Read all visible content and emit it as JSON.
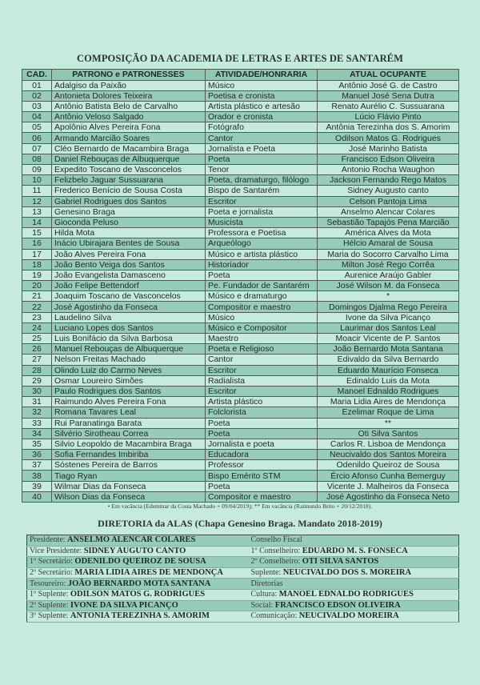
{
  "title": "COMPOSIÇÃO DA ACADEMIA DE LETRAS E ARTES DE SANTARÉM",
  "table": {
    "headers": [
      "CAD.",
      "PATRONO e PATRONESSES",
      "ATIVIDADE/HONRARIA",
      "ATUAL OCUPANTE"
    ],
    "rows": [
      [
        "01",
        "Adalgiso da Paixão",
        "Músico",
        "Antônio José G. de Castro"
      ],
      [
        "02",
        "Antonieta Dolores Teixeira",
        "Poetisa e cronista",
        "Manuel José Sena Dutra"
      ],
      [
        "03",
        "Antônio Batista Belo de Carvalho",
        "Artista plástico e artesão",
        "Renato Aurélio C. Sussuarana"
      ],
      [
        "04",
        "Antônio Veloso Salgado",
        "Orador e cronista",
        "Lúcio Flávio Pinto"
      ],
      [
        "05",
        "Apolônio Alves Pereira Fona",
        "Fotógrafo",
        "Antônia Terezinha dos S. Amorim"
      ],
      [
        "06",
        "Armando Marcião Soares",
        "Cantor",
        "Odilson Matos G. Rodrigues"
      ],
      [
        "07",
        "Cléo Bernardo de Macambira Braga",
        "Jornalista e Poeta",
        "José Marinho Batista"
      ],
      [
        "08",
        "Daniel Rebouças de Albuquerque",
        "Poeta",
        "Francisco Edson Oliveira"
      ],
      [
        "09",
        "Expedito Toscano de Vasconcelos",
        "Tenor",
        "Antonio Rocha Waughon"
      ],
      [
        "10",
        "Felizbelo Jaguar Sussuarana",
        "Poeta, dramaturgo, filólogo",
        "Jackson Fernando Rego Matos"
      ],
      [
        "11",
        "Frederico Benício de Sousa Costa",
        "Bispo de Santarém",
        "Sidney Augusto canto"
      ],
      [
        "12",
        "Gabriel Rodrigues dos Santos",
        "Escritor",
        "Celson Pantoja Lima"
      ],
      [
        "13",
        "Genesino Braga",
        "Poeta e jornalista",
        "Anselmo Alencar Colares"
      ],
      [
        "14",
        "Gioconda Peluso",
        "Musicista",
        "Sebastião Tapajós Pena Marcião"
      ],
      [
        "15",
        "Hilda Mota",
        "Professora e Poetisa",
        "América Alves da Mota"
      ],
      [
        "16",
        "Inácio Ubirajara Bentes de Sousa",
        "Arqueólogo",
        "Hélcio Amaral de Sousa"
      ],
      [
        "17",
        "João Alves Pereira Fona",
        "Músico e artista plástico",
        "Maria do Socorro Carvalho Lima"
      ],
      [
        "18",
        "João Bento Veiga dos Santos",
        "Historiador",
        "Milton José Rego Corrêa"
      ],
      [
        "19",
        "João Evangelista Damasceno",
        "Poeta",
        "Aurenice Araújo Gabler"
      ],
      [
        "20",
        "João Felipe Bettendorf",
        "Pe. Fundador de Santarém",
        "José Wilson M. da Fonseca"
      ],
      [
        "21",
        "Joaquim Toscano de Vasconcelos",
        "Músico e dramaturgo",
        "*"
      ],
      [
        "22",
        "José Agostinho da Fonseca",
        "Compositor e maestro",
        "Domingos Djalma Rego Pereira"
      ],
      [
        "23",
        "Laudelino Silva",
        "Músico",
        "Ivone da Silva Picanço"
      ],
      [
        "24",
        "Luciano Lopes dos Santos",
        "Músico e Compositor",
        "Laurimar dos Santos Leal"
      ],
      [
        "25",
        "Luis Bonifácio da Silva Barbosa",
        "Maestro",
        "Moacir Vicente de P. Santos"
      ],
      [
        "26",
        "Manuel Rebouças de Albuquerque",
        "Poeta e Religioso",
        "João Bernardo Mota Santana"
      ],
      [
        "27",
        "Nelson Freitas Machado",
        "Cantor",
        "Edivaldo da Silva Bernardo"
      ],
      [
        "28",
        "Olindo Luiz do Carmo Neves",
        "Escritor",
        "Eduardo Maurício Fonseca"
      ],
      [
        "29",
        "Osmar Loureiro Simões",
        "Radialista",
        "Edinaldo Luis da Mota"
      ],
      [
        "30",
        "Paulo Rodrigues dos Santos",
        "Escritor",
        "Manoel Ednaldo Rodrigues"
      ],
      [
        "31",
        "Raimundo Alves Pereira Fona",
        "Artista plástico",
        "Maria Lidia Aires de Mendonça"
      ],
      [
        "32",
        "Romana Tavares Leal",
        "Folclorista",
        "Ezelimar Roque de Lima"
      ],
      [
        "33",
        "Rui Paranatinga Barata",
        "Poeta",
        "**"
      ],
      [
        "34",
        "Silvério Sirotheau Correa",
        "Poeta",
        "Oti Silva Santos"
      ],
      [
        "35",
        "Silvio Leopoldo de Macambira Braga",
        "Jornalista e poeta",
        "Carlos R. Lisboa de Mendonça"
      ],
      [
        "36",
        "Sofia Fernandes Imbiriba",
        "Educadora",
        "Neucivaldo dos Santos Moreira"
      ],
      [
        "37",
        "Sóstenes Pereira de Barros",
        "Professor",
        "Odenildo Queiroz de Sousa"
      ],
      [
        "38",
        "Tiago Ryan",
        "Bispo Emérito STM",
        "Ércio Afonso Cunha Bemerguy"
      ],
      [
        "39",
        "Wilmar Dias da Fonseca",
        "Poeta",
        "Vicente J. Malheiros da Fonseca"
      ],
      [
        "40",
        "Wilson Dias da Fonseca",
        "Compositor e maestro",
        "José Agostinho da Fonseca Neto"
      ]
    ]
  },
  "footnote": "•    Em vacância (Edemmar da Costa Machado + 09/04/2019); ** Em vacância (Raimundo Brito + 20/12/2018).",
  "board": {
    "title": "DIRETORIA da ALAS (Chapa Genesino Braga. Mandato 2018-2019)",
    "rows": [
      [
        {
          "label": "Presidente: ",
          "name": "ANSELMO ALENCAR COLARES"
        },
        {
          "label": "Conselho Fiscal",
          "name": ""
        }
      ],
      [
        {
          "label": "Vice Presidente: ",
          "name": "SIDNEY AUGUTO CANTO"
        },
        {
          "label": "1º Conselheiro: ",
          "name": "EDUARDO M. S. FONSECA"
        }
      ],
      [
        {
          "label": "1º Secretário: ",
          "name": "ODENILDO QUEIROZ DE SOUSA"
        },
        {
          "label": "2º Conselheiro: ",
          "name": "OTI SILVA SANTOS"
        }
      ],
      [
        {
          "label": "2º Secretário: ",
          "name": "MARIA LIDIA AIRES DE MENDONÇA"
        },
        {
          "label": "Suplente: ",
          "name": "NEUCIVALDO DOS S. MOREIRA"
        }
      ],
      [
        {
          "label": "Tesoureiro: ",
          "name": "JOÃO BERNARDO MOTA SANTANA"
        },
        {
          "label": "Diretorias",
          "name": ""
        }
      ],
      [
        {
          "label": "1º Suplente: ",
          "name": "ODILSON MATOS G. RODRIGUES"
        },
        {
          "label": "Cultura: ",
          "name": "MANOEL EDNALDO RODRIGUES"
        }
      ],
      [
        {
          "label": "2º Suplente: ",
          "name": "IVONE DA SILVA PICANÇO"
        },
        {
          "label": "Social: ",
          "name": "FRANCISCO EDSON OLIVEIRA"
        }
      ],
      [
        {
          "label": "3º Suplente: ",
          "name": "ANTONIA TEREZINHA S. AMORIM"
        },
        {
          "label": "Comunicação: ",
          "name": "NEUCIVALDO MOREIRA"
        }
      ]
    ]
  },
  "colors": {
    "background": "#c6eadb",
    "row_shade": "#97cdb8",
    "border": "#3b4a44"
  }
}
